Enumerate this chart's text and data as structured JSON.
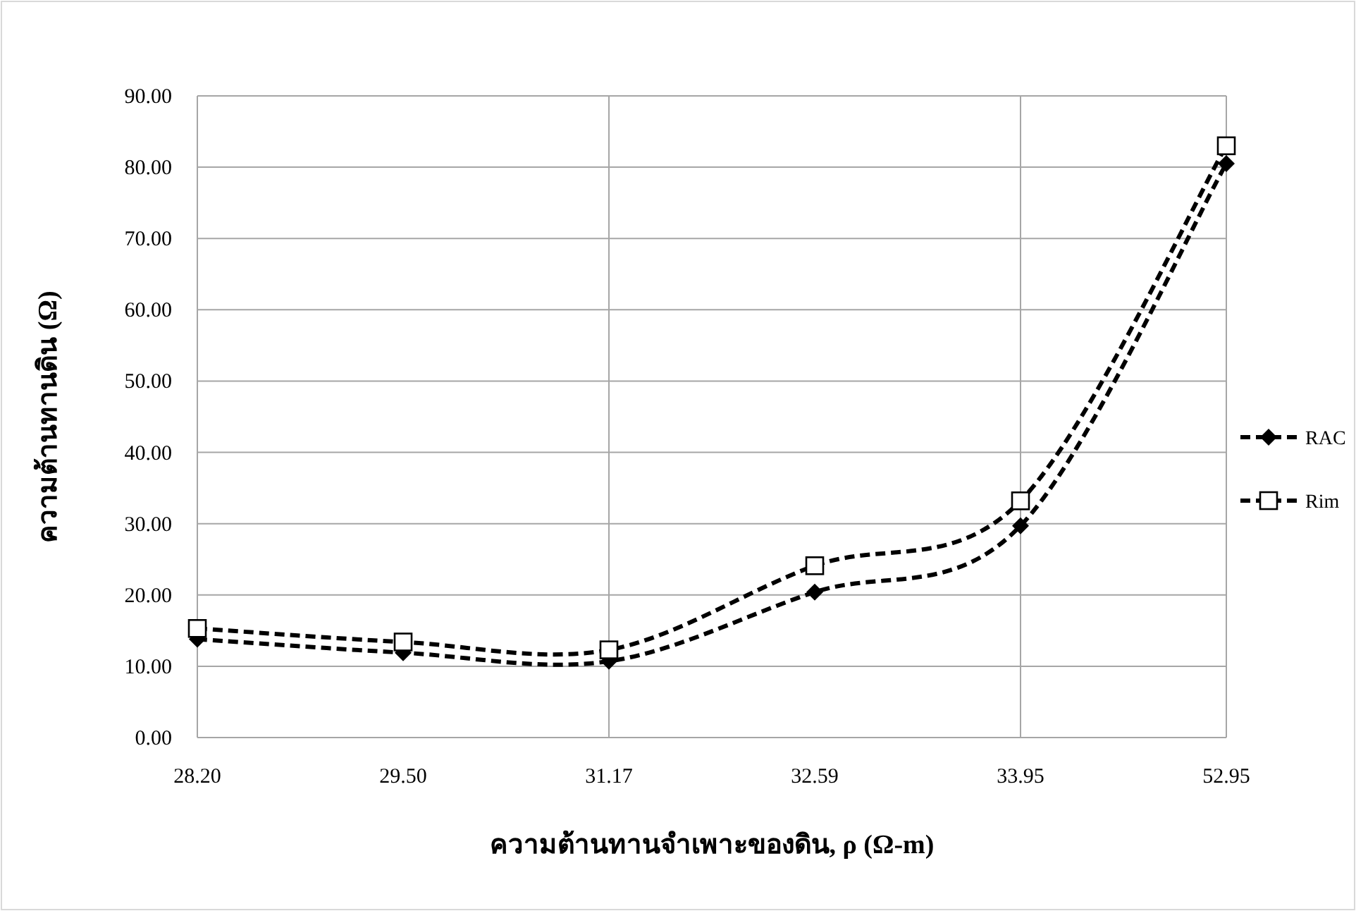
{
  "chart_data": {
    "type": "line",
    "xlabel": "ความต้านทานจำเพาะของดิน, ρ (Ω-m)",
    "ylabel": "ความต้านทานดิน (Ω)",
    "categories": [
      "28.20",
      "29.50",
      "31.17",
      "32.59",
      "33.95",
      "52.95"
    ],
    "series": [
      {
        "name": "RAC",
        "color": "#000000",
        "marker": "diamond",
        "line_style": "dashed",
        "values": [
          13.8,
          11.9,
          10.7,
          20.4,
          29.7,
          80.5
        ]
      },
      {
        "name": "Rim",
        "color": "#000000",
        "marker": "square",
        "line_style": "dashed",
        "values": [
          15.3,
          13.4,
          12.3,
          24.1,
          33.2,
          83.0
        ]
      }
    ],
    "ylim": [
      0,
      90
    ],
    "yticks": [
      {
        "value": 0,
        "label": "0.00"
      },
      {
        "value": 10,
        "label": "10.00"
      },
      {
        "value": 20,
        "label": "20.00"
      },
      {
        "value": 30,
        "label": "30.00"
      },
      {
        "value": 40,
        "label": "40.00"
      },
      {
        "value": 50,
        "label": "50.00"
      },
      {
        "value": 60,
        "label": "60.00"
      },
      {
        "value": 70,
        "label": "70.00"
      },
      {
        "value": 80,
        "label": "80.00"
      },
      {
        "value": 90,
        "label": "90.00"
      }
    ],
    "grid": true,
    "legend": "right"
  }
}
